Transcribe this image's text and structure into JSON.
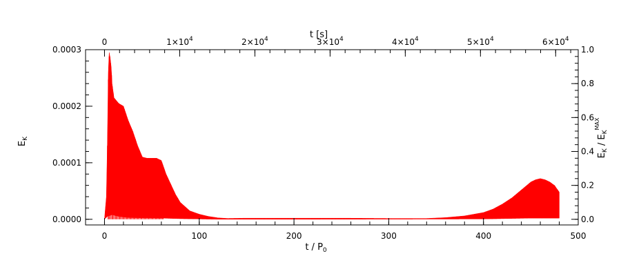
{
  "chart_data": {
    "type": "line",
    "series_color": "#ff0000",
    "bottom_axis": {
      "label_main": "t / P",
      "label_sub": "0",
      "range": [
        -20,
        500
      ],
      "ticks": [
        0,
        100,
        200,
        300,
        400,
        500
      ],
      "tick_labels": [
        "0",
        "100",
        "200",
        "300",
        "400",
        "500"
      ],
      "minor_step": 20
    },
    "top_axis": {
      "label": "t [s]",
      "ticks": [
        0,
        10000,
        20000,
        30000,
        40000,
        50000,
        60000
      ],
      "tick_labels": [
        {
          "mant": "0",
          "exp": ""
        },
        {
          "mant": "1×10",
          "exp": "4"
        },
        {
          "mant": "2×10",
          "exp": "4"
        },
        {
          "mant": "3×10",
          "exp": "4"
        },
        {
          "mant": "4×10",
          "exp": "4"
        },
        {
          "mant": "5×10",
          "exp": "4"
        },
        {
          "mant": "6×10",
          "exp": "4"
        }
      ],
      "seconds_per_period": 126,
      "minor_step": 2000
    },
    "left_axis": {
      "label_main": "E",
      "label_sub": "K",
      "range": [
        -1e-05,
        0.0003
      ],
      "ticks": [
        0,
        0.0001,
        0.0002,
        0.0003
      ],
      "tick_labels": [
        "0.0000",
        "0.0001",
        "0.0002",
        "0.0003"
      ],
      "minor_step": 2e-05
    },
    "right_axis": {
      "label_main": "E",
      "label_sub": "K",
      "label_sep": " / ",
      "label_main2": "E",
      "label_sub2": "K",
      "label_sup2": "MAX",
      "range": [
        -0.0333,
        1.0
      ],
      "ticks": [
        0,
        0.2,
        0.4,
        0.6,
        0.8,
        1.0
      ],
      "tick_labels": [
        "0.0",
        "0.2",
        "0.4",
        "0.6",
        "0.8",
        "1.0"
      ],
      "minor_step": 0.04
    },
    "envelope": {
      "x_upper": [
        0,
        2,
        3,
        4,
        5,
        6,
        7,
        8,
        10,
        15,
        20,
        25,
        30,
        35,
        40,
        45,
        50,
        55,
        60,
        65,
        70,
        75,
        80,
        90,
        100,
        110,
        120,
        130,
        150,
        200,
        250,
        300,
        340,
        360,
        380,
        400,
        410,
        420,
        430,
        440,
        450,
        455,
        460,
        465,
        470,
        475,
        480
      ],
      "upper": [
        0,
        4e-05,
        0.00013,
        0.00026,
        0.000295,
        0.000285,
        0.00027,
        0.00024,
        0.000215,
        0.000205,
        0.0002,
        0.000175,
        0.000155,
        0.00013,
        0.00011,
        0.000108,
        0.000108,
        0.000108,
        0.000104,
        8e-05,
        6.2e-05,
        4.4e-05,
        3e-05,
        1.5e-05,
        9e-06,
        5e-06,
        2.5e-06,
        1.5e-06,
        2e-06,
        2e-06,
        2e-06,
        1.5e-06,
        1.5e-06,
        3e-06,
        6e-06,
        1.2e-05,
        1.8e-05,
        2.7e-05,
        3.8e-05,
        5.2e-05,
        6.6e-05,
        7e-05,
        7.2e-05,
        7e-05,
        6.6e-05,
        6e-05,
        4.8e-05
      ],
      "x_lower": [
        0,
        3,
        8,
        15,
        25,
        40,
        60,
        80,
        100,
        120,
        200,
        400,
        450,
        480
      ],
      "lower": [
        0,
        5e-06,
        8e-06,
        5e-06,
        3e-06,
        2.5e-06,
        2e-06,
        1e-06,
        5e-07,
        0,
        0,
        5e-07,
        2e-06,
        2e-06
      ]
    }
  }
}
